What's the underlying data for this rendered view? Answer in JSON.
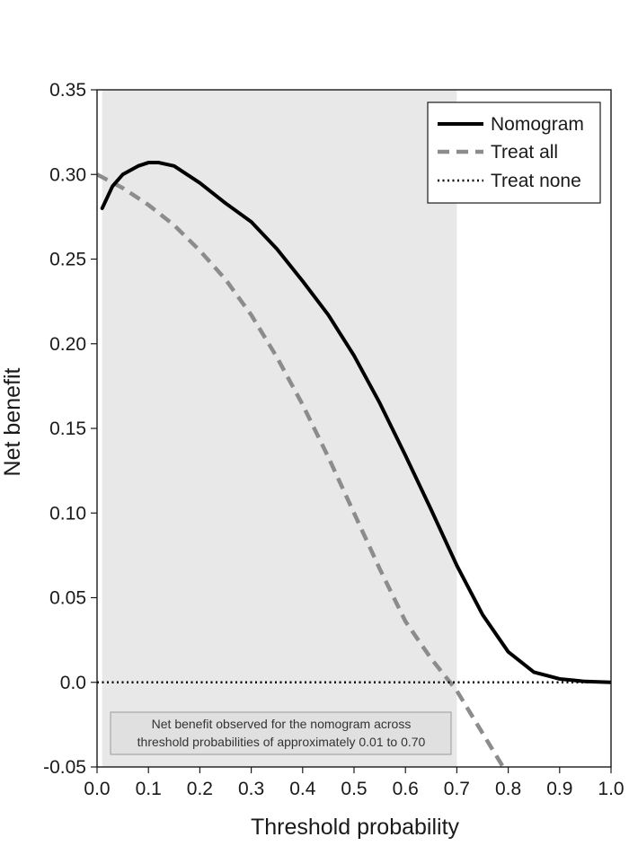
{
  "chart_data": {
    "type": "line",
    "title": "",
    "xlabel": "Threshold probability",
    "ylabel": "Net benefit",
    "xlim": [
      0.0,
      1.0
    ],
    "ylim": [
      -0.05,
      0.35
    ],
    "xticks": [
      "0.0",
      "0.1",
      "0.2",
      "0.3",
      "0.4",
      "0.5",
      "0.6",
      "0.7",
      "0.8",
      "0.9",
      "1.0"
    ],
    "yticks": [
      "0.35",
      "0.30",
      "0.25",
      "0.20",
      "0.15",
      "0.10",
      "0.05",
      "0.0",
      "-0.05"
    ],
    "grid": false,
    "legend": "top-right",
    "shaded_region": {
      "x": [
        0.01,
        0.7
      ],
      "color": "#e8e8e8"
    },
    "annotation": {
      "line1": "Net benefit observed for the nomogram across",
      "line2": "threshold probabilities of approximately 0.01 to 0.70"
    },
    "series": [
      {
        "name": "Nomogram",
        "style": "solid",
        "color": "#000000",
        "x": [
          0.01,
          0.03,
          0.05,
          0.08,
          0.1,
          0.12,
          0.15,
          0.2,
          0.25,
          0.3,
          0.35,
          0.4,
          0.45,
          0.5,
          0.55,
          0.6,
          0.65,
          0.7,
          0.75,
          0.8,
          0.85,
          0.9,
          0.95,
          1.0
        ],
        "y": [
          0.28,
          0.293,
          0.3,
          0.305,
          0.307,
          0.307,
          0.305,
          0.295,
          0.283,
          0.272,
          0.256,
          0.237,
          0.217,
          0.193,
          0.165,
          0.134,
          0.102,
          0.069,
          0.04,
          0.018,
          0.006,
          0.002,
          0.0005,
          0.0
        ]
      },
      {
        "name": "Treat all",
        "style": "dashed",
        "color": "#8c8c8c",
        "x": [
          0.0,
          0.05,
          0.1,
          0.15,
          0.2,
          0.25,
          0.3,
          0.35,
          0.4,
          0.45,
          0.5,
          0.55,
          0.6,
          0.65,
          0.7,
          0.75,
          0.79
        ],
        "y": [
          0.3,
          0.292,
          0.282,
          0.27,
          0.255,
          0.238,
          0.217,
          0.192,
          0.164,
          0.133,
          0.1,
          0.067,
          0.036,
          0.014,
          -0.005,
          -0.03,
          -0.05
        ]
      },
      {
        "name": "Treat none",
        "style": "dotted",
        "color": "#000000",
        "x": [
          0.0,
          1.0
        ],
        "y": [
          0.0,
          0.0
        ]
      }
    ]
  }
}
